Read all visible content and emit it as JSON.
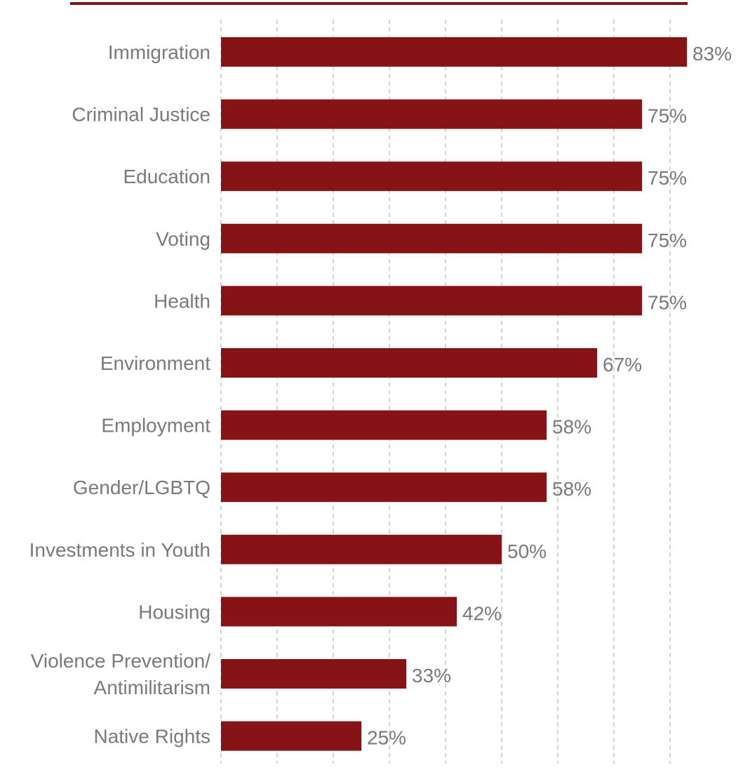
{
  "colors": {
    "bar": "#861316",
    "top_rule": "#861316",
    "grid": "#b8b8b8",
    "text": "#7a7a7a"
  },
  "chart_data": {
    "type": "bar",
    "orientation": "horizontal",
    "title": "",
    "xlabel": "",
    "ylabel": "",
    "grid": true,
    "xlim": [
      0,
      83
    ],
    "categories": [
      "Immigration",
      "Criminal Justice",
      "Education",
      "Voting",
      "Health",
      "Environment",
      "Employment",
      "Gender/LGBTQ",
      "Investments in Youth",
      "Housing",
      "Violence Prevention/\nAntimilitarism",
      "Native Rights"
    ],
    "values": [
      83,
      75,
      75,
      75,
      75,
      67,
      58,
      58,
      50,
      42,
      33,
      25
    ],
    "value_labels": [
      "83%",
      "75%",
      "75%",
      "75%",
      "75%",
      "67%",
      "58%",
      "58%",
      "50%",
      "42%",
      "33%",
      "25%"
    ]
  }
}
